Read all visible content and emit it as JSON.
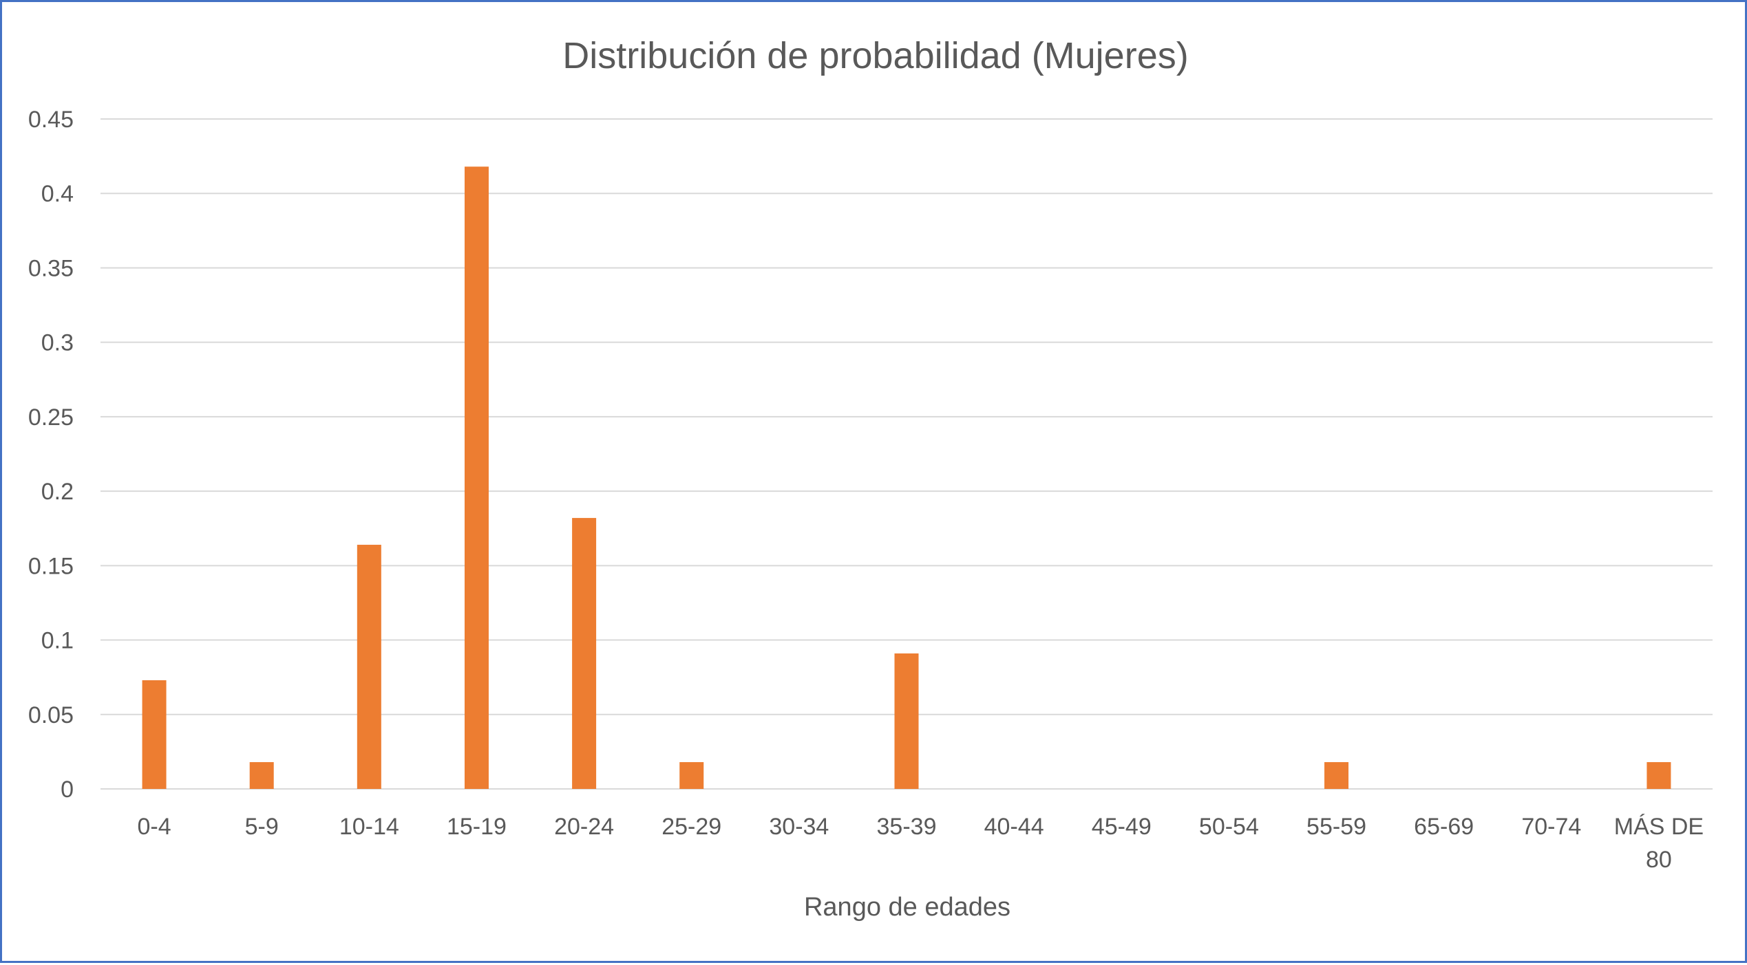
{
  "chart_data": {
    "type": "bar",
    "title": "Distribución de probabilidad  (Mujeres)",
    "xlabel": "Rango de edades",
    "ylabel": "",
    "categories": [
      "0-4",
      "5-9",
      "10-14",
      "15-19",
      "20-24",
      "25-29",
      "30-34",
      "35-39",
      "40-44",
      "45-49",
      "50-54",
      "55-59",
      "65-69",
      "70-74",
      "MÁS DE 80"
    ],
    "series": [
      {
        "values": [
          0.073,
          0.018,
          0.164,
          0.418,
          0.182,
          0.018,
          0,
          0.091,
          0,
          0,
          0,
          0.018,
          0,
          0,
          0.018
        ],
        "color": "#ed7d31"
      }
    ],
    "ylim": [
      0,
      0.45
    ],
    "yticks": [
      "0",
      "0.05",
      "0.1",
      "0.15",
      "0.2",
      "0.25",
      "0.3",
      "0.35",
      "0.4",
      "0.45"
    ],
    "grid": true,
    "legend": "none"
  }
}
